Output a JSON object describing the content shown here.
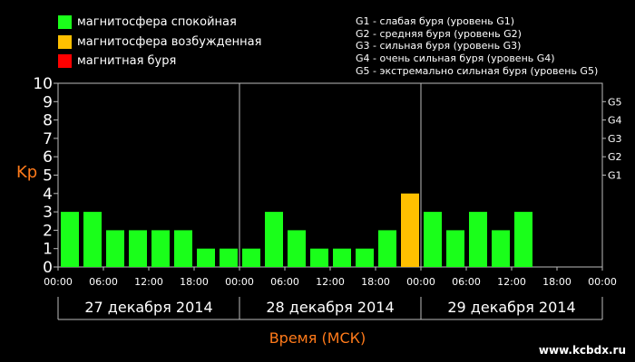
{
  "legend": [
    {
      "label": "магнитосфера спокойная",
      "color": "#1aff1a"
    },
    {
      "label": "магнитосфера возбужденная",
      "color": "#ffc000"
    },
    {
      "label": "магнитная буря",
      "color": "#ff0000"
    }
  ],
  "storm_levels": [
    "G1 - слабая буря (уровень G1)",
    "G2 - средняя буря (уровень G2)",
    "G3 - сильная буря (уровень G3)",
    "G4 - очень сильная буря (уровень G4)",
    "G5 - экстремально сильная буря (уровень G5)"
  ],
  "site": "www.kcbdx.ru",
  "colors": {
    "quiet": "#1aff1a",
    "active": "#ffc000",
    "storm": "#ff0000",
    "axis_title": "#ff7a1a",
    "grid": "#bbbbbb"
  },
  "chart_data": {
    "type": "bar",
    "ylabel": "Kp",
    "xlabel": "Время (МСК)",
    "ylim": [
      0,
      10
    ],
    "yticks": [
      0,
      1,
      2,
      3,
      4,
      5,
      6,
      7,
      8,
      9,
      10
    ],
    "storm_ticks": [
      {
        "label": "G1",
        "kp": 5
      },
      {
        "label": "G2",
        "kp": 6
      },
      {
        "label": "G3",
        "kp": 7
      },
      {
        "label": "G4",
        "kp": 8
      },
      {
        "label": "G5",
        "kp": 9
      }
    ],
    "time_ticks": [
      "00:00",
      "06:00",
      "12:00",
      "18:00",
      "00:00",
      "06:00",
      "12:00",
      "18:00",
      "00:00",
      "06:00",
      "12:00",
      "18:00",
      "00:00"
    ],
    "days": [
      "27 декабря 2014",
      "28 декабря 2014",
      "29 декабря 2014"
    ],
    "interval_hours": 3,
    "values": [
      3,
      3,
      2,
      2,
      2,
      2,
      1,
      1,
      1,
      3,
      2,
      1,
      1,
      1,
      2,
      4,
      3,
      2,
      3,
      2,
      3,
      null,
      null,
      null
    ],
    "status": [
      "quiet",
      "quiet",
      "quiet",
      "quiet",
      "quiet",
      "quiet",
      "quiet",
      "quiet",
      "quiet",
      "quiet",
      "quiet",
      "quiet",
      "quiet",
      "quiet",
      "quiet",
      "active",
      "quiet",
      "quiet",
      "quiet",
      "quiet",
      "quiet",
      null,
      null,
      null
    ]
  }
}
